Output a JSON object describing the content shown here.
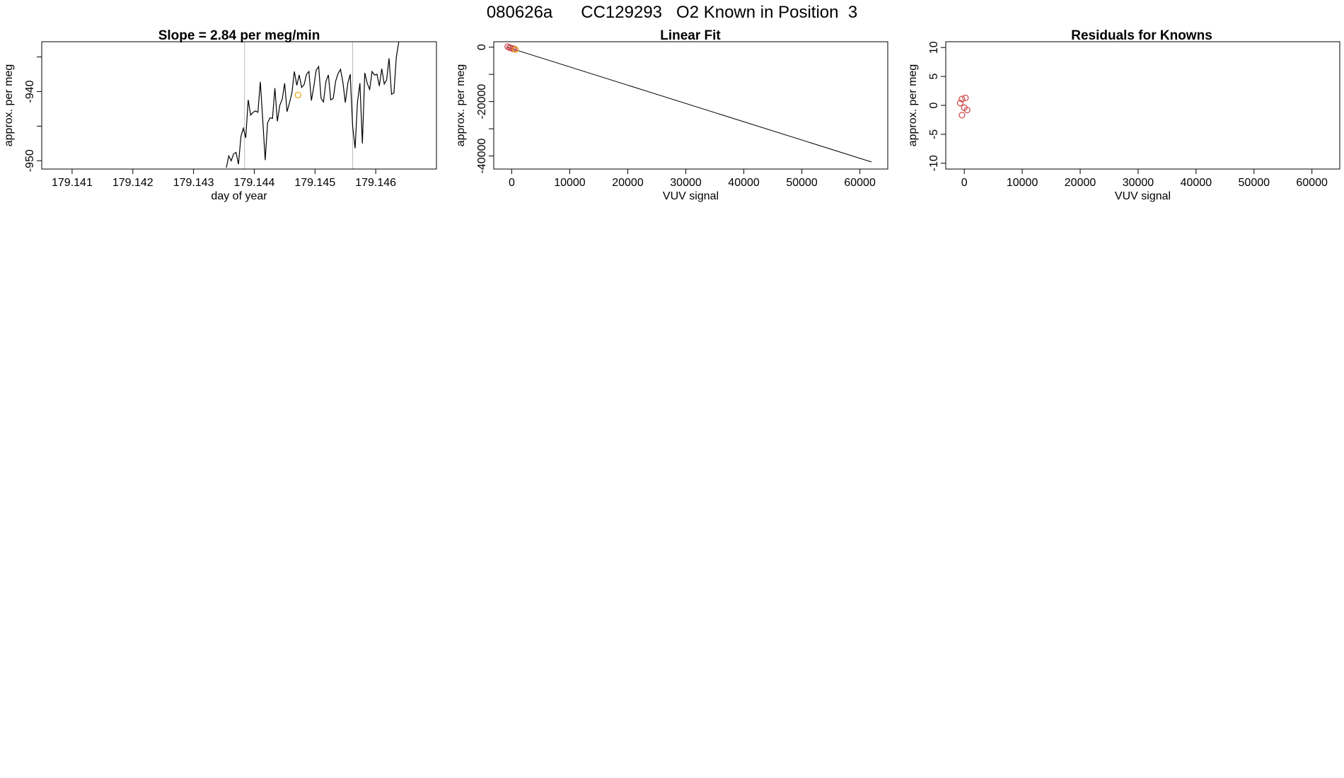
{
  "figure": {
    "title": "080626a      CC129293   O2 Known in Position  3"
  },
  "chart_data": [
    {
      "type": "line",
      "title": "Slope =  2.84  per meg/min",
      "xlabel": "day of year",
      "ylabel": "approx. per meg",
      "xlim": [
        179.1405,
        179.147
      ],
      "ylim": [
        -951.2,
        -932.8
      ],
      "x_ticks": [
        179.141,
        179.142,
        179.143,
        179.144,
        179.145,
        179.146
      ],
      "x_tick_labels": [
        "179.141",
        "179.142",
        "179.143",
        "179.144",
        "179.145",
        "179.146"
      ],
      "y_ticks": [
        -950,
        -945,
        -940,
        -935
      ],
      "y_tick_labels": [
        "-950",
        "",
        "-940",
        ""
      ],
      "vlines": [
        179.14384,
        179.14562
      ],
      "series": [
        {
          "color": "#000000",
          "x": [
            179.14354,
            179.14358,
            179.14362,
            179.14366,
            179.1437,
            179.14374,
            179.14378,
            179.14382,
            179.14386,
            179.1439,
            179.14394,
            179.14398,
            179.14402,
            179.14406,
            179.1441,
            179.14414,
            179.14418,
            179.14422,
            179.14426,
            179.1443,
            179.14434,
            179.14438,
            179.14442,
            179.14446,
            179.1445,
            179.14454,
            179.14458,
            179.14462,
            179.14466,
            179.1447,
            179.14474,
            179.14478,
            179.14482,
            179.14486,
            179.1449,
            179.14494,
            179.14498,
            179.14502,
            179.14506,
            179.1451,
            179.14514,
            179.14518,
            179.14522,
            179.14526,
            179.1453,
            179.14534,
            179.14538,
            179.14542,
            179.14546,
            179.1455,
            179.14554,
            179.14558,
            179.14562,
            179.14566,
            179.1457,
            179.14574,
            179.14578,
            179.14582,
            179.14586,
            179.1459,
            179.14594,
            179.14598,
            179.14602,
            179.14606,
            179.1461,
            179.14614,
            179.14618,
            179.14622,
            179.14626,
            179.1463,
            179.14634,
            179.14638
          ],
          "y": [
            -951.0,
            -949.3,
            -950.0,
            -949.0,
            -948.8,
            -950.5,
            -946.5,
            -945.3,
            -946.7,
            -941.2,
            -943.4,
            -943.0,
            -942.8,
            -943.0,
            -938.6,
            -944.2,
            -949.9,
            -944.5,
            -943.8,
            -943.9,
            -939.5,
            -944.3,
            -942.0,
            -941.1,
            -938.8,
            -942.9,
            -941.6,
            -940.2,
            -937.1,
            -939.1,
            -937.6,
            -939.4,
            -939.0,
            -937.5,
            -937.1,
            -941.3,
            -939.3,
            -936.9,
            -936.4,
            -941.0,
            -941.5,
            -938.5,
            -937.6,
            -941.2,
            -941.0,
            -938.5,
            -937.4,
            -936.8,
            -938.7,
            -941.6,
            -938.8,
            -937.5,
            -945.0,
            -948.2,
            -941.5,
            -938.8,
            -947.5,
            -937.3,
            -938.8,
            -939.7,
            -937.1,
            -937.6,
            -937.5,
            -939.2,
            -936.7,
            -938.9,
            -938.3,
            -935.2,
            -940.4,
            -940.2,
            -935.0,
            -932.8
          ]
        }
      ],
      "points": [
        {
          "x": 179.14472,
          "y": -940.5,
          "color": "#f0a000"
        }
      ]
    },
    {
      "type": "scatter",
      "title": "Linear Fit",
      "xlabel": "VUV signal",
      "ylabel": "approx. per meg",
      "xlim": [
        -3100,
        64800
      ],
      "ylim": [
        -44800,
        2000
      ],
      "x_ticks": [
        0,
        10000,
        20000,
        30000,
        40000,
        50000,
        60000
      ],
      "x_tick_labels": [
        "0",
        "10000",
        "20000",
        "30000",
        "40000",
        "50000",
        "60000"
      ],
      "y_ticks": [
        0,
        -20000,
        -40000
      ],
      "y_tick_labels": [
        "0",
        "-20000",
        "-40000"
      ],
      "y_ticks_minor": [
        -10000,
        -30000
      ],
      "fit_line": {
        "x": [
          -800,
          62000
        ],
        "y": [
          0,
          -42200
        ],
        "color": "#000000"
      },
      "points": [
        {
          "x": -700,
          "y": 200,
          "color": "#cc4444"
        },
        {
          "x": -400,
          "y": -150,
          "color": "#cc4444"
        },
        {
          "x": -150,
          "y": -300,
          "color": "#cc4444"
        },
        {
          "x": 150,
          "y": -500,
          "color": "#cc4444"
        },
        {
          "x": 400,
          "y": -650,
          "color": "#cc4444"
        },
        {
          "x": 650,
          "y": -850,
          "color": "#f0a000"
        }
      ]
    },
    {
      "type": "scatter",
      "title": "Residuals for Knowns",
      "xlabel": "VUV signal",
      "ylabel": "approx. per meg",
      "xlim": [
        -3200,
        64800
      ],
      "ylim": [
        -11,
        11
      ],
      "x_ticks": [
        0,
        10000,
        20000,
        30000,
        40000,
        50000,
        60000
      ],
      "x_tick_labels": [
        "0",
        "10000",
        "20000",
        "30000",
        "40000",
        "50000",
        "60000"
      ],
      "y_ticks": [
        10,
        5,
        0,
        -5,
        -10
      ],
      "y_tick_labels": [
        "10",
        "5",
        "0",
        "-5",
        "-10"
      ],
      "points": [
        {
          "x": -700,
          "y": 0.4,
          "color": "#cc4444"
        },
        {
          "x": -400,
          "y": 1.1,
          "color": "#cc4444"
        },
        {
          "x": 200,
          "y": 1.3,
          "color": "#cc4444"
        },
        {
          "x": 0,
          "y": -0.4,
          "color": "#cc4444"
        },
        {
          "x": 500,
          "y": -0.8,
          "color": "#cc4444"
        },
        {
          "x": -400,
          "y": -1.7,
          "color": "#cc4444"
        }
      ]
    }
  ]
}
